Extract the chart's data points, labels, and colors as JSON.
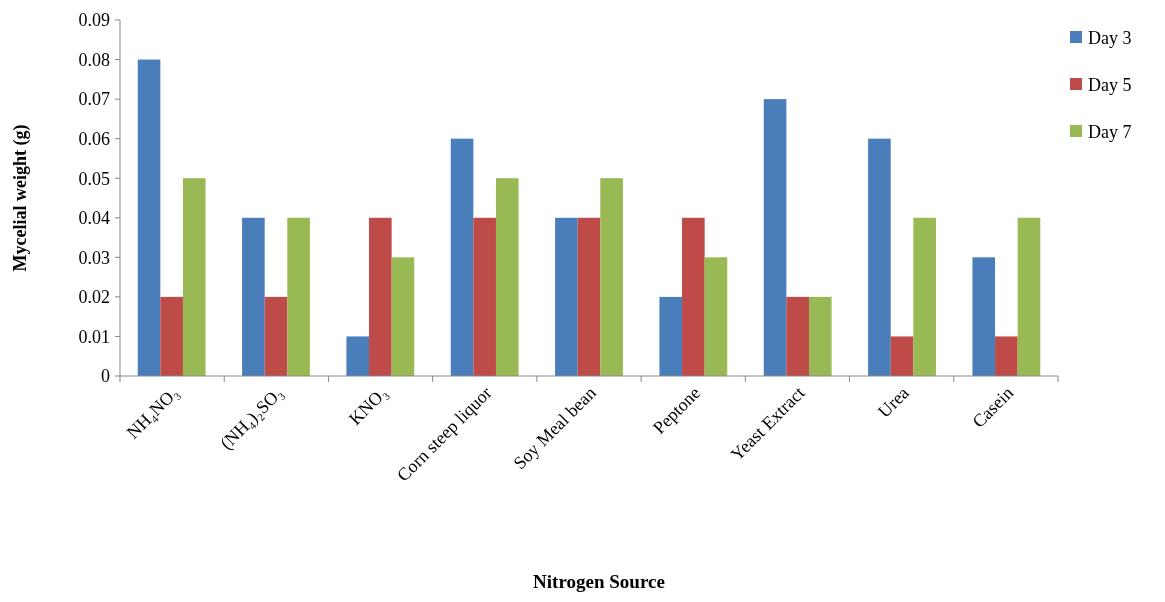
{
  "chart_data": {
    "type": "bar",
    "xlabel": "Nitrogen Source",
    "ylabel": "Mycelial weight (g)",
    "categories": [
      "NH₄NO₃",
      "(NH₄)₂SO₃",
      "KNO₃",
      "Corn steep liquor",
      "Soy Meal bean",
      "Peptone",
      "Yeast Extract",
      "Urea",
      "Casein"
    ],
    "series": [
      {
        "name": "Day 3",
        "color": "#4a7ebb",
        "values": [
          0.08,
          0.04,
          0.01,
          0.06,
          0.04,
          0.02,
          0.07,
          0.06,
          0.03
        ]
      },
      {
        "name": "Day 5",
        "color": "#be4b48",
        "values": [
          0.02,
          0.02,
          0.04,
          0.04,
          0.04,
          0.04,
          0.02,
          0.01,
          0.01
        ]
      },
      {
        "name": "Day 7",
        "color": "#98b954",
        "values": [
          0.05,
          0.04,
          0.03,
          0.05,
          0.05,
          0.03,
          0.02,
          0.04,
          0.04
        ]
      }
    ],
    "ylim": [
      0,
      0.09
    ],
    "yticks": [
      0,
      0.01,
      0.02,
      0.03,
      0.04,
      0.05,
      0.06,
      0.07,
      0.08,
      0.09
    ],
    "grid": false,
    "legend": "top right"
  }
}
